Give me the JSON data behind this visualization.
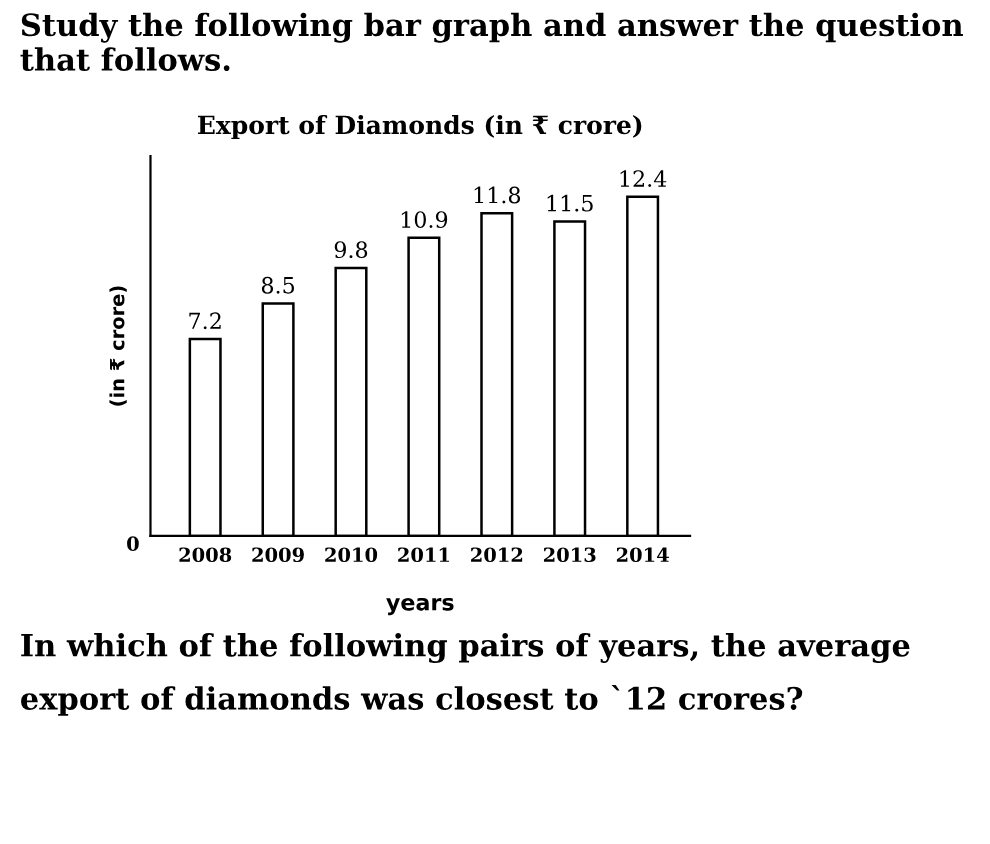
{
  "chart_data": {
    "type": "bar",
    "title": "Export of Diamonds (in ₹ crore)",
    "xlabel": "years",
    "ylabel": "(in ₹ crore)",
    "categories": [
      "2008",
      "2009",
      "2010",
      "2011",
      "2012",
      "2013",
      "2014"
    ],
    "values": [
      7.2,
      8.5,
      9.8,
      10.9,
      11.8,
      11.5,
      12.4
    ],
    "color": "#ffffff",
    "data_labels": true,
    "annotations": [
      "Study the following bar graph and answer the question that follows.",
      "In which of the following pairs of years, the average export of diamonds was closest to `12 crores?",
      "0"
    ]
  }
}
